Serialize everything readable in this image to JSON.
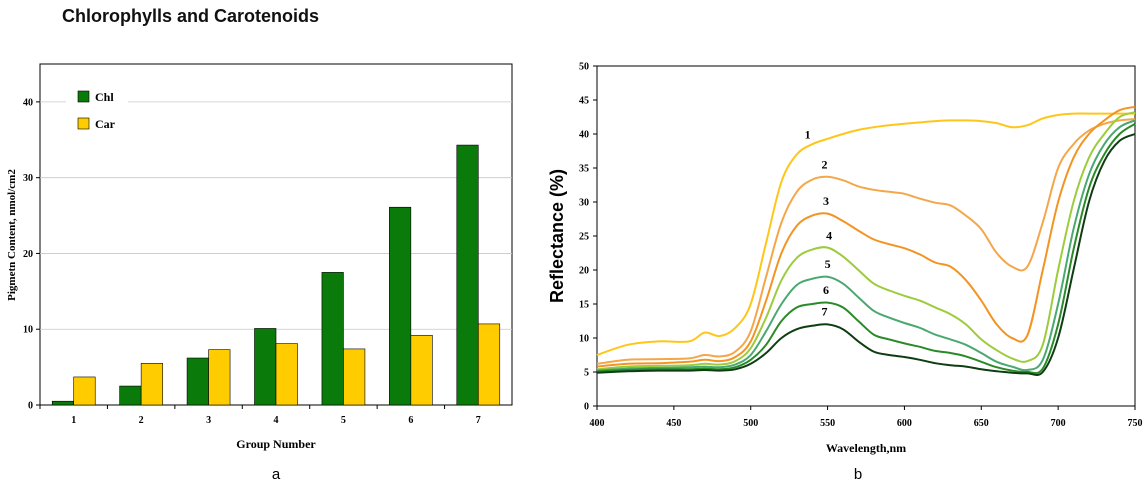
{
  "page": {
    "title": "Chlorophylls and Carotenoids"
  },
  "panels": {
    "a": "a",
    "b": "b"
  },
  "chart_data": [
    {
      "id": "a",
      "type": "bar",
      "xlabel": "Group Number",
      "ylabel": "Pigmetn Content, nmol/cm2",
      "categories": [
        "1",
        "2",
        "3",
        "4",
        "5",
        "6",
        "7"
      ],
      "ylim": [
        0,
        45
      ],
      "yticks": [
        0,
        10,
        20,
        30,
        40
      ],
      "grid": true,
      "legend": "top-left",
      "series": [
        {
          "name": "Chl",
          "color": "#0a7a0a",
          "values": [
            0.5,
            2.5,
            6.2,
            10.1,
            17.5,
            26.1,
            34.3
          ]
        },
        {
          "name": "Car",
          "color": "#ffcc00",
          "values": [
            3.7,
            5.5,
            7.3,
            8.1,
            7.4,
            9.2,
            10.7
          ]
        }
      ]
    },
    {
      "id": "b",
      "type": "line",
      "xlabel": "Wavelength,nm",
      "ylabel": "Reflectance (%)",
      "xlim": [
        400,
        750
      ],
      "ylim": [
        0,
        50
      ],
      "xticks": [
        400,
        450,
        500,
        550,
        600,
        650,
        700,
        750
      ],
      "yticks": [
        0,
        5,
        10,
        15,
        20,
        25,
        30,
        35,
        40,
        45,
        50
      ],
      "grid": false,
      "x": [
        400,
        420,
        440,
        460,
        470,
        480,
        490,
        500,
        510,
        520,
        530,
        540,
        550,
        560,
        570,
        580,
        590,
        600,
        610,
        620,
        630,
        640,
        650,
        660,
        670,
        680,
        690,
        700,
        710,
        720,
        730,
        740,
        750
      ],
      "series": [
        {
          "name": "1",
          "color": "#ffc61a",
          "values": [
            7.5,
            9.0,
            9.5,
            9.5,
            10.8,
            10.3,
            11.5,
            15.0,
            24.0,
            33.0,
            37.0,
            38.5,
            39.3,
            40.0,
            40.6,
            41.0,
            41.3,
            41.5,
            41.7,
            41.9,
            42.0,
            42.0,
            41.9,
            41.6,
            41.0,
            41.3,
            42.3,
            42.8,
            43.0,
            43.0,
            43.0,
            43.0,
            43.0
          ]
        },
        {
          "name": "2",
          "color": "#f4a64a",
          "values": [
            6.2,
            6.8,
            6.9,
            7.0,
            7.5,
            7.3,
            8.0,
            11.0,
            19.0,
            27.0,
            31.5,
            33.3,
            33.7,
            33.2,
            32.3,
            31.8,
            31.5,
            31.2,
            30.5,
            29.9,
            29.5,
            28.0,
            26.0,
            22.5,
            20.5,
            20.5,
            27.0,
            35.0,
            38.5,
            40.5,
            41.5,
            42.0,
            42.2
          ]
        },
        {
          "name": "3",
          "color": "#f39422",
          "values": [
            5.8,
            6.2,
            6.3,
            6.5,
            6.8,
            6.6,
            7.2,
            9.5,
            15.5,
            22.5,
            26.5,
            28.0,
            28.3,
            27.2,
            25.8,
            24.5,
            23.8,
            23.2,
            22.3,
            21.1,
            20.5,
            18.5,
            15.5,
            12.0,
            10.0,
            10.4,
            20.0,
            30.0,
            36.5,
            40.0,
            42.0,
            43.5,
            44.0
          ]
        },
        {
          "name": "4",
          "color": "#9ccc3c",
          "values": [
            5.4,
            5.8,
            5.9,
            6.0,
            6.2,
            6.1,
            6.6,
            8.5,
            13.0,
            18.5,
            21.8,
            23.0,
            23.3,
            22.0,
            20.0,
            18.0,
            17.0,
            16.2,
            15.5,
            14.5,
            13.5,
            12.0,
            9.8,
            8.2,
            7.0,
            6.6,
            9.0,
            20.0,
            30.0,
            36.5,
            40.0,
            42.5,
            43.2
          ]
        },
        {
          "name": "5",
          "color": "#4aa870",
          "values": [
            5.2,
            5.5,
            5.6,
            5.7,
            5.8,
            5.7,
            6.1,
            7.5,
            11.0,
            15.0,
            17.8,
            18.7,
            19.0,
            18.0,
            16.0,
            14.0,
            13.0,
            12.2,
            11.5,
            10.5,
            9.8,
            9.0,
            7.8,
            6.5,
            5.8,
            5.3,
            6.8,
            15.0,
            26.0,
            34.0,
            38.5,
            41.0,
            42.0
          ]
        },
        {
          "name": "6",
          "color": "#2a8a28",
          "values": [
            5.1,
            5.3,
            5.4,
            5.4,
            5.5,
            5.4,
            5.7,
            6.8,
            9.0,
            12.5,
            14.5,
            15.0,
            15.2,
            14.5,
            12.5,
            10.5,
            9.8,
            9.2,
            8.7,
            8.1,
            7.8,
            7.3,
            6.5,
            5.7,
            5.2,
            5.0,
            5.5,
            12.0,
            23.0,
            32.0,
            37.0,
            40.0,
            41.5
          ]
        },
        {
          "name": "7",
          "color": "#0f3d12",
          "values": [
            4.9,
            5.1,
            5.2,
            5.2,
            5.3,
            5.2,
            5.4,
            6.2,
            7.8,
            10.0,
            11.3,
            11.8,
            12.0,
            11.3,
            9.5,
            8.0,
            7.5,
            7.2,
            6.8,
            6.3,
            6.0,
            5.8,
            5.4,
            5.1,
            4.9,
            4.8,
            5.0,
            10.0,
            20.0,
            30.0,
            36.0,
            39.0,
            40.0
          ]
        }
      ]
    }
  ]
}
